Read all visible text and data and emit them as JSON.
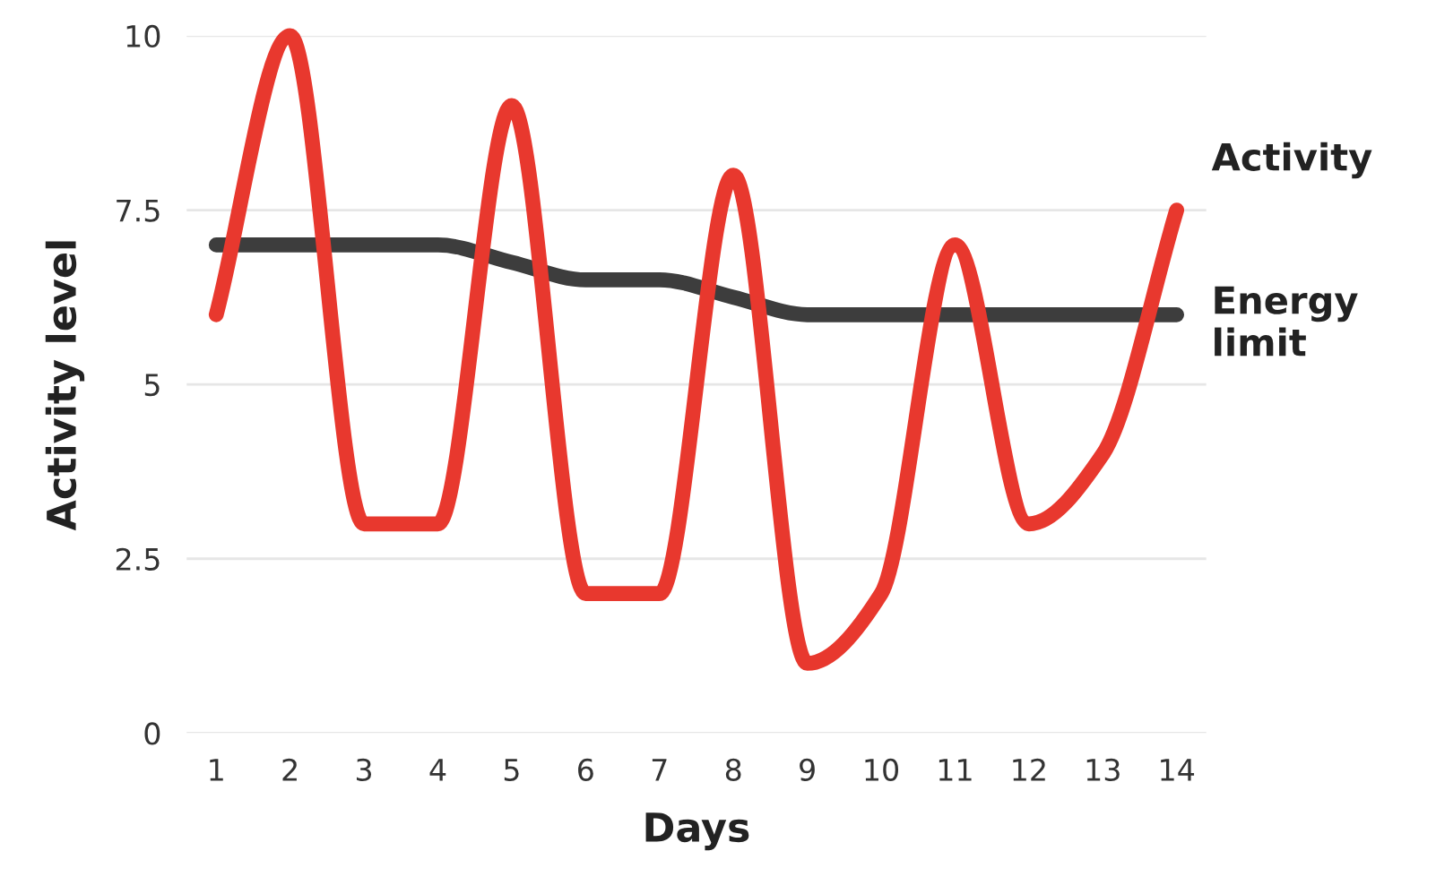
{
  "chart_data": {
    "type": "line",
    "xlabel": "Days",
    "ylabel": "Activity level",
    "x": [
      1,
      2,
      3,
      4,
      5,
      6,
      7,
      8,
      9,
      10,
      11,
      12,
      13,
      14
    ],
    "series": [
      {
        "name": "Activity",
        "color": "#e8382e",
        "values": [
          6,
          10,
          3,
          3,
          9,
          2,
          2,
          8,
          1,
          2,
          7,
          3,
          4,
          7.5
        ]
      },
      {
        "name": "Energy limit",
        "color": "#3d3d3d",
        "values": [
          7,
          7,
          7,
          7,
          6.75,
          6.5,
          6.5,
          6.25,
          6,
          6,
          6,
          6,
          6,
          6
        ]
      }
    ],
    "xlim": [
      0.6,
      14.4
    ],
    "ylim": [
      0,
      10
    ],
    "xticks": [
      1,
      2,
      3,
      4,
      5,
      6,
      7,
      8,
      9,
      10,
      11,
      12,
      13,
      14
    ],
    "yticks": [
      0,
      2.5,
      5,
      7.5,
      10
    ],
    "grid": "y",
    "legend": false,
    "marker": "none",
    "line_style": "solid"
  }
}
